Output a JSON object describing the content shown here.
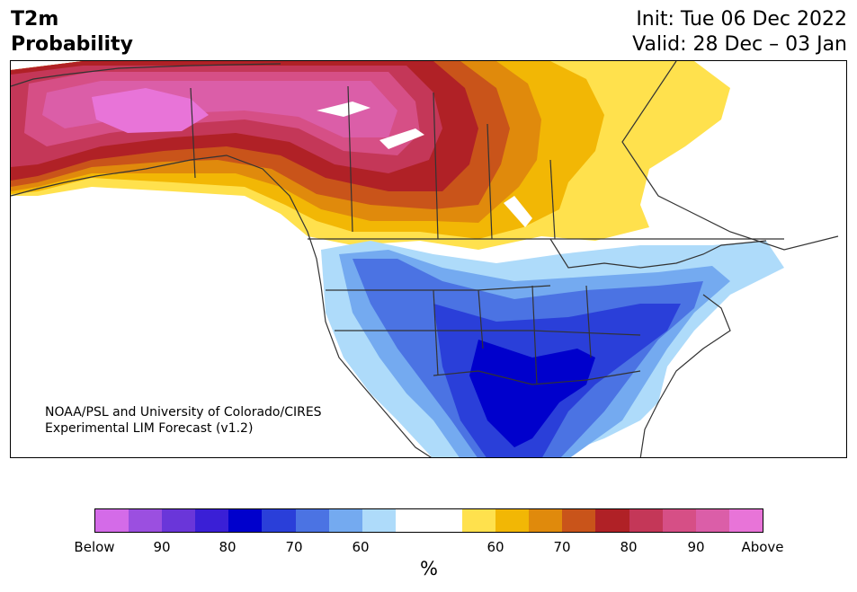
{
  "header": {
    "title_line1": "T2m",
    "title_line2": "Probability",
    "init_text": "Init: Tue 06 Dec 2022",
    "valid_text": "Valid: 28 Dec – 03 Jan"
  },
  "map": {
    "credit_line1": "NOAA/PSL and University of Colorado/CIRES",
    "credit_line2": "Experimental LIM Forecast (v1.2)"
  },
  "colorbar": {
    "unit": "%",
    "tick_labels": [
      "Below",
      "90",
      "80",
      "70",
      "60",
      "60",
      "70",
      "80",
      "90",
      "Above"
    ],
    "colors": [
      "#d46be8",
      "#9b4fe0",
      "#6a36d9",
      "#3a1fd6",
      "#0000cc",
      "#2a3fd9",
      "#4b73e3",
      "#74aaf0",
      "#aedbfa",
      "#ffffff",
      "#ffffff",
      "#ffe14d",
      "#f2b705",
      "#e08a0c",
      "#c9541a",
      "#b02126",
      "#c43758",
      "#d64f86",
      "#db5ea8",
      "#e874d8"
    ]
  },
  "colors": {
    "above_max": "#e874d8",
    "below_max": "#d46be8",
    "state_borders": "#333333"
  }
}
